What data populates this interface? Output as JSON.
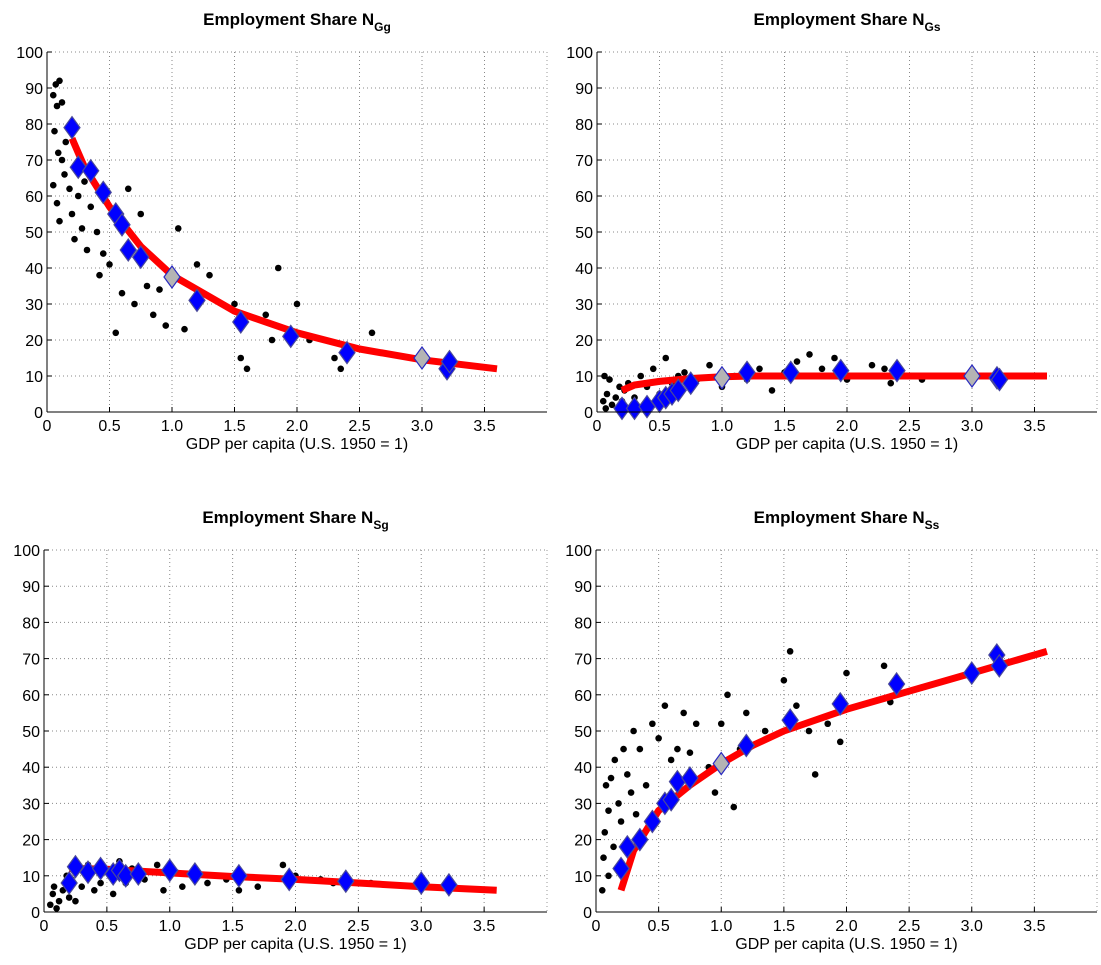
{
  "chart_data": [
    {
      "type": "scatter",
      "title": "Employment Share N",
      "title_subscript": "Gg",
      "xlabel": "GDP per capita (U.S. 1950 = 1)",
      "xlim": [
        0,
        4
      ],
      "ylim": [
        0,
        100
      ],
      "xticks": [
        0,
        0.5,
        {
          "value": 1,
          "label": "1.0"
        },
        1.5,
        {
          "value": 2,
          "label": "2.0"
        },
        2.5,
        {
          "value": 3,
          "label": "3.0"
        },
        3.5
      ],
      "yticks": [
        0,
        10,
        20,
        30,
        40,
        50,
        60,
        70,
        80,
        90,
        100
      ],
      "grid": true,
      "series": [
        {
          "marker": "dot",
          "color": "#000000",
          "x": [
            0.05,
            0.07,
            0.08,
            0.1,
            0.06,
            0.09,
            0.12,
            0.05,
            0.08,
            0.1,
            0.12,
            0.15,
            0.14,
            0.18,
            0.2,
            0.22,
            0.25,
            0.28,
            0.3,
            0.32,
            0.35,
            0.4,
            0.42,
            0.45,
            0.5,
            0.55,
            0.6,
            0.65,
            0.7,
            0.75,
            0.8,
            0.85,
            0.9,
            0.95,
            1.05,
            1.1,
            1.2,
            1.3,
            1.5,
            1.55,
            1.6,
            1.75,
            1.8,
            1.85,
            2.0,
            2.1,
            2.3,
            2.35,
            2.6
          ],
          "values": [
            88,
            91,
            85,
            92,
            78,
            72,
            86,
            63,
            58,
            53,
            70,
            75,
            66,
            62,
            55,
            48,
            60,
            51,
            64,
            45,
            57,
            50,
            38,
            44,
            41,
            22,
            33,
            62,
            30,
            55,
            35,
            27,
            34,
            24,
            51,
            23,
            41,
            38,
            30,
            15,
            12,
            27,
            20,
            40,
            30,
            20,
            15,
            12,
            22
          ]
        },
        {
          "marker": "line",
          "color": "#ff0000",
          "x": [
            0.2,
            0.3,
            0.5,
            0.75,
            1,
            1.25,
            1.5,
            2,
            2.5,
            3,
            3.6
          ],
          "values": [
            76,
            68,
            57,
            46,
            38,
            33,
            28,
            22,
            17.5,
            14.5,
            12
          ]
        },
        {
          "marker": "diamond",
          "color": "#0000ff",
          "edgecolor": "#4a4a9a",
          "x": [
            0.2,
            0.25,
            0.35,
            0.45,
            0.55,
            0.6,
            0.65,
            0.75,
            1.2,
            1.55,
            1.95,
            2.4,
            3.2,
            3.22
          ],
          "values": [
            79,
            68,
            67,
            61,
            55,
            52,
            45,
            43,
            31,
            25,
            21,
            16.5,
            12,
            14
          ]
        },
        {
          "marker": "diamond",
          "color": "#b4b4b4",
          "edgecolor": "#2a2ac0",
          "x": [
            1.0,
            3.0
          ],
          "values": [
            37.5,
            15
          ]
        }
      ]
    },
    {
      "type": "scatter",
      "title": "Employment Share N",
      "title_subscript": "Gs",
      "xlabel": "GDP per capita (U.S. 1950 = 1)",
      "xlim": [
        0,
        4
      ],
      "ylim": [
        0,
        100
      ],
      "xticks": [
        0,
        0.5,
        {
          "value": 1,
          "label": "1.0"
        },
        1.5,
        {
          "value": 2,
          "label": "2.0"
        },
        2.5,
        {
          "value": 3,
          "label": "3.0"
        },
        3.5
      ],
      "yticks": [
        0,
        10,
        20,
        30,
        40,
        50,
        60,
        70,
        80,
        90,
        100
      ],
      "grid": true,
      "series": [
        {
          "marker": "dot",
          "color": "#000000",
          "x": [
            0.05,
            0.07,
            0.08,
            0.1,
            0.06,
            0.12,
            0.15,
            0.18,
            0.2,
            0.22,
            0.25,
            0.3,
            0.35,
            0.38,
            0.4,
            0.45,
            0.5,
            0.55,
            0.6,
            0.65,
            0.7,
            0.8,
            0.9,
            1.0,
            1.1,
            1.2,
            1.3,
            1.4,
            1.5,
            1.6,
            1.7,
            1.8,
            1.9,
            2.0,
            2.2,
            2.3,
            2.35,
            2.6
          ],
          "values": [
            3,
            1,
            5,
            9,
            10,
            2,
            4,
            7,
            3,
            6,
            8,
            4,
            10,
            2,
            7,
            12,
            5,
            15,
            8,
            10,
            11,
            9,
            13,
            7,
            10,
            9,
            12,
            6,
            11,
            14,
            16,
            12,
            15,
            9,
            13,
            12,
            8,
            9
          ]
        },
        {
          "marker": "line",
          "color": "#ff0000",
          "x": [
            0.2,
            0.3,
            0.5,
            0.75,
            1,
            1.25,
            1.5,
            2,
            2.5,
            3,
            3.6
          ],
          "values": [
            6,
            7.5,
            8.5,
            9.3,
            9.8,
            10,
            10,
            10,
            10,
            10,
            10
          ]
        },
        {
          "marker": "diamond",
          "color": "#0000ff",
          "edgecolor": "#4a4a9a",
          "x": [
            0.2,
            0.3,
            0.4,
            0.5,
            0.55,
            0.6,
            0.65,
            0.75,
            1.2,
            1.55,
            1.95,
            2.4,
            3.2,
            3.22
          ],
          "values": [
            1,
            1,
            1.5,
            3,
            4,
            5,
            6,
            8,
            11,
            11,
            11.5,
            11.5,
            9.5,
            9
          ]
        },
        {
          "marker": "diamond",
          "color": "#b4b4b4",
          "edgecolor": "#2a2ac0",
          "x": [
            1.0,
            3.0
          ],
          "values": [
            9.5,
            10
          ]
        }
      ]
    },
    {
      "type": "scatter",
      "title": "Employment Share N",
      "title_subscript": "Sg",
      "xlabel": "GDP per capita (U.S. 1950 = 1)",
      "xlim": [
        0,
        4
      ],
      "ylim": [
        0,
        100
      ],
      "xticks": [
        0,
        0.5,
        {
          "value": 1,
          "label": "1.0"
        },
        1.5,
        {
          "value": 2,
          "label": "2.0"
        },
        2.5,
        {
          "value": 3,
          "label": "3.0"
        },
        3.5
      ],
      "yticks": [
        0,
        10,
        20,
        30,
        40,
        50,
        60,
        70,
        80,
        90,
        100
      ],
      "grid": true,
      "series": [
        {
          "marker": "dot",
          "color": "#000000",
          "x": [
            0.05,
            0.07,
            0.08,
            0.1,
            0.12,
            0.15,
            0.18,
            0.2,
            0.22,
            0.25,
            0.3,
            0.35,
            0.4,
            0.45,
            0.5,
            0.55,
            0.6,
            0.65,
            0.7,
            0.8,
            0.9,
            0.95,
            1.05,
            1.1,
            1.2,
            1.3,
            1.45,
            1.55,
            1.7,
            1.9,
            2.0,
            2.2,
            2.3,
            2.6
          ],
          "values": [
            2,
            5,
            7,
            1,
            3,
            6,
            10,
            4,
            9,
            3,
            7,
            13,
            6,
            8,
            11,
            5,
            14,
            8,
            12,
            9,
            13,
            6,
            11,
            7,
            10,
            8,
            9,
            6,
            7,
            13,
            10,
            9,
            8,
            8
          ]
        },
        {
          "marker": "line",
          "color": "#ff0000",
          "x": [
            0.2,
            0.3,
            0.5,
            0.75,
            1,
            1.25,
            1.5,
            2,
            2.5,
            3,
            3.6
          ],
          "values": [
            12,
            12,
            11.8,
            11.3,
            10.8,
            10.3,
            9.8,
            9,
            8,
            7,
            6
          ]
        },
        {
          "marker": "diamond",
          "color": "#0000ff",
          "edgecolor": "#4a4a9a",
          "x": [
            0.2,
            0.25,
            0.35,
            0.45,
            0.55,
            0.6,
            0.65,
            0.75,
            1.0,
            1.2,
            1.55,
            1.95,
            2.4,
            3.0,
            3.22
          ],
          "values": [
            8,
            12.5,
            11,
            12,
            10.5,
            11.5,
            10,
            10.5,
            11.5,
            10.5,
            10,
            9,
            8.5,
            8,
            7.5
          ]
        }
      ]
    },
    {
      "type": "scatter",
      "title": "Employment Share N",
      "title_subscript": "Ss",
      "xlabel": "GDP per capita (U.S. 1950 = 1)",
      "xlim": [
        0,
        4
      ],
      "ylim": [
        0,
        100
      ],
      "xticks": [
        0,
        0.5,
        {
          "value": 1,
          "label": "1.0"
        },
        1.5,
        {
          "value": 2,
          "label": "2.0"
        },
        2.5,
        {
          "value": 3,
          "label": "3.0"
        },
        3.5
      ],
      "yticks": [
        0,
        10,
        20,
        30,
        40,
        50,
        60,
        70,
        80,
        90,
        100
      ],
      "grid": true,
      "series": [
        {
          "marker": "dot",
          "color": "#000000",
          "x": [
            0.05,
            0.06,
            0.07,
            0.08,
            0.1,
            0.1,
            0.12,
            0.14,
            0.15,
            0.18,
            0.2,
            0.22,
            0.25,
            0.28,
            0.3,
            0.32,
            0.35,
            0.4,
            0.45,
            0.5,
            0.55,
            0.6,
            0.65,
            0.7,
            0.75,
            0.8,
            0.9,
            0.95,
            1.0,
            1.05,
            1.1,
            1.15,
            1.2,
            1.35,
            1.5,
            1.55,
            1.6,
            1.7,
            1.75,
            1.85,
            1.95,
            2.0,
            2.3,
            2.35,
            2.6
          ],
          "values": [
            6,
            15,
            22,
            35,
            10,
            28,
            37,
            18,
            42,
            30,
            25,
            45,
            38,
            33,
            50,
            27,
            45,
            35,
            52,
            48,
            57,
            42,
            45,
            55,
            44,
            52,
            40,
            33,
            52,
            60,
            29,
            45,
            55,
            50,
            64,
            72,
            57,
            50,
            38,
            52,
            47,
            66,
            68,
            58,
            62
          ]
        },
        {
          "marker": "line",
          "color": "#ff0000",
          "x": [
            0.2,
            0.3,
            0.5,
            0.75,
            1,
            1.25,
            1.5,
            2,
            2.5,
            3,
            3.6
          ],
          "values": [
            6,
            17,
            28,
            35,
            41,
            46,
            50,
            56,
            61,
            66,
            72
          ]
        },
        {
          "marker": "diamond",
          "color": "#0000ff",
          "edgecolor": "#4a4a9a",
          "x": [
            0.2,
            0.25,
            0.35,
            0.45,
            0.55,
            0.6,
            0.65,
            0.75,
            1.2,
            1.55,
            1.95,
            2.4,
            3.0,
            3.2,
            3.22
          ],
          "values": [
            12,
            18,
            20,
            25,
            30,
            31,
            36,
            37,
            46,
            53,
            57.5,
            63,
            66,
            71,
            68
          ]
        },
        {
          "marker": "diamond",
          "color": "#b4b4b4",
          "edgecolor": "#2a2ac0",
          "x": [
            1.0
          ],
          "values": [
            41
          ]
        }
      ]
    }
  ]
}
